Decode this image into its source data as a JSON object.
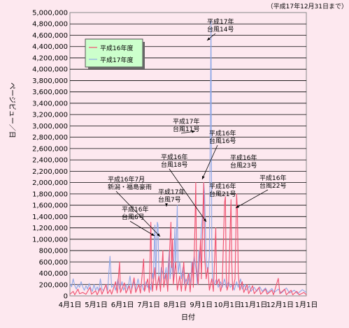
{
  "chart_data": {
    "type": "line",
    "note": "（平成17年12月31日まで）",
    "xlabel": "日付",
    "ylabel": "ページビュー／日",
    "ylim": [
      0,
      5000000
    ],
    "ytick_step": 200000,
    "grid": true,
    "legend_position": "top-left",
    "x_ticks": [
      "4月1日",
      "5月1日",
      "6月1日",
      "7月1日",
      "8月1日",
      "9月1日",
      "10月1日",
      "11月1日",
      "12月1日",
      "1月1日"
    ],
    "series": [
      {
        "name": "平成16年度",
        "color": "#f0506e",
        "points": [
          [
            0,
            30000
          ],
          [
            4,
            80000
          ],
          [
            6,
            20000
          ],
          [
            10,
            120000
          ],
          [
            12,
            40000
          ],
          [
            16,
            60000
          ],
          [
            20,
            30000
          ],
          [
            25,
            150000
          ],
          [
            27,
            30000
          ],
          [
            32,
            90000
          ],
          [
            34,
            20000
          ],
          [
            38,
            140000
          ],
          [
            40,
            30000
          ],
          [
            45,
            200000
          ],
          [
            47,
            40000
          ],
          [
            50,
            110000
          ],
          [
            52,
            30000
          ],
          [
            57,
            250000
          ],
          [
            59,
            50000
          ],
          [
            62,
            600000
          ],
          [
            63,
            60000
          ],
          [
            68,
            230000
          ],
          [
            70,
            50000
          ],
          [
            74,
            180000
          ],
          [
            76,
            40000
          ],
          [
            80,
            320000
          ],
          [
            82,
            60000
          ],
          [
            86,
            200000
          ],
          [
            88,
            50000
          ],
          [
            92,
            650000
          ],
          [
            93,
            80000
          ],
          [
            97,
            300000
          ],
          [
            99,
            60000
          ],
          [
            101,
            1300000
          ],
          [
            102,
            300000
          ],
          [
            103,
            80000
          ],
          [
            106,
            500000
          ],
          [
            108,
            100000
          ],
          [
            111,
            350000
          ],
          [
            113,
            80000
          ],
          [
            116,
            800000
          ],
          [
            117,
            150000
          ],
          [
            120,
            400000
          ],
          [
            122,
            80000
          ],
          [
            126,
            1300000
          ],
          [
            127,
            500000
          ],
          [
            128,
            1000000
          ],
          [
            129,
            200000
          ],
          [
            132,
            600000
          ],
          [
            134,
            100000
          ],
          [
            137,
            350000
          ],
          [
            139,
            80000
          ],
          [
            142,
            600000
          ],
          [
            144,
            90000
          ],
          [
            148,
            400000
          ],
          [
            150,
            70000
          ],
          [
            153,
            600000
          ],
          [
            154,
            150000
          ],
          [
            156,
            1200000
          ],
          [
            157,
            2000000
          ],
          [
            158,
            500000
          ],
          [
            160,
            200000
          ],
          [
            163,
            1000000
          ],
          [
            164,
            300000
          ],
          [
            166,
            1500000
          ],
          [
            167,
            2000000
          ],
          [
            168,
            700000
          ],
          [
            170,
            300000
          ],
          [
            172,
            500000
          ],
          [
            174,
            100000
          ],
          [
            177,
            300000
          ],
          [
            179,
            80000
          ],
          [
            182,
            1200000
          ],
          [
            183,
            200000
          ],
          [
            186,
            300000
          ],
          [
            188,
            80000
          ],
          [
            190,
            200000
          ],
          [
            193,
            1650000
          ],
          [
            194,
            1750000
          ],
          [
            195,
            400000
          ],
          [
            196,
            100000
          ],
          [
            198,
            200000
          ],
          [
            201,
            1700000
          ],
          [
            202,
            600000
          ],
          [
            203,
            100000
          ],
          [
            206,
            300000
          ],
          [
            208,
            1800000
          ],
          [
            209,
            1500000
          ],
          [
            210,
            400000
          ],
          [
            212,
            100000
          ],
          [
            215,
            250000
          ],
          [
            217,
            60000
          ],
          [
            221,
            200000
          ],
          [
            223,
            40000
          ],
          [
            228,
            180000
          ],
          [
            230,
            40000
          ],
          [
            236,
            150000
          ],
          [
            238,
            30000
          ],
          [
            244,
            120000
          ],
          [
            246,
            30000
          ],
          [
            252,
            100000
          ],
          [
            254,
            20000
          ],
          [
            260,
            310000
          ],
          [
            262,
            40000
          ],
          [
            268,
            120000
          ],
          [
            270,
            20000
          ],
          [
            276,
            100000
          ],
          [
            278,
            20000
          ],
          [
            283,
            80000
          ],
          [
            286,
            20000
          ],
          [
            292,
            60000
          ],
          [
            295,
            20000
          ]
        ]
      },
      {
        "name": "平成17年度",
        "color": "#8ea8e8",
        "points": [
          [
            0,
            220000
          ],
          [
            2,
            160000
          ],
          [
            4,
            300000
          ],
          [
            6,
            180000
          ],
          [
            8,
            120000
          ],
          [
            10,
            200000
          ],
          [
            12,
            150000
          ],
          [
            14,
            250000
          ],
          [
            16,
            160000
          ],
          [
            18,
            100000
          ],
          [
            20,
            180000
          ],
          [
            22,
            120000
          ],
          [
            24,
            220000
          ],
          [
            26,
            130000
          ],
          [
            28,
            80000
          ],
          [
            30,
            200000
          ],
          [
            32,
            100000
          ],
          [
            34,
            160000
          ],
          [
            36,
            80000
          ],
          [
            38,
            300000
          ],
          [
            40,
            120000
          ],
          [
            42,
            90000
          ],
          [
            45,
            200000
          ],
          [
            47,
            100000
          ],
          [
            50,
            700000
          ],
          [
            52,
            150000
          ],
          [
            55,
            200000
          ],
          [
            57,
            100000
          ],
          [
            60,
            300000
          ],
          [
            62,
            120000
          ],
          [
            65,
            250000
          ],
          [
            67,
            100000
          ],
          [
            70,
            200000
          ],
          [
            72,
            100000
          ],
          [
            75,
            350000
          ],
          [
            77,
            120000
          ],
          [
            80,
            250000
          ],
          [
            82,
            100000
          ],
          [
            85,
            300000
          ],
          [
            87,
            150000
          ],
          [
            90,
            200000
          ],
          [
            92,
            100000
          ],
          [
            95,
            250000
          ],
          [
            97,
            150000
          ],
          [
            99,
            200000
          ],
          [
            101,
            100000
          ],
          [
            103,
            400000
          ],
          [
            104,
            300000
          ],
          [
            106,
            1250000
          ],
          [
            107,
            300000
          ],
          [
            109,
            1300000
          ],
          [
            110,
            1250000
          ],
          [
            111,
            300000
          ],
          [
            112,
            200000
          ],
          [
            114,
            500000
          ],
          [
            116,
            400000
          ],
          [
            118,
            300000
          ],
          [
            120,
            500000
          ],
          [
            121,
            200000
          ],
          [
            124,
            800000
          ],
          [
            125,
            300000
          ],
          [
            127,
            600000
          ],
          [
            129,
            300000
          ],
          [
            131,
            1200000
          ],
          [
            132,
            500000
          ],
          [
            134,
            1600000
          ],
          [
            135,
            400000
          ],
          [
            137,
            600000
          ],
          [
            139,
            300000
          ],
          [
            141,
            500000
          ],
          [
            143,
            200000
          ],
          [
            145,
            300000
          ],
          [
            147,
            200000
          ],
          [
            149,
            400000
          ],
          [
            151,
            200000
          ],
          [
            152,
            600000
          ],
          [
            153,
            400000
          ],
          [
            155,
            700000
          ],
          [
            157,
            500000
          ],
          [
            159,
            200000
          ],
          [
            161,
            800000
          ],
          [
            162,
            600000
          ],
          [
            164,
            1200000
          ],
          [
            166,
            1500000
          ],
          [
            167,
            2000000
          ],
          [
            168,
            1800000
          ],
          [
            170,
            600000
          ],
          [
            172,
            400000
          ],
          [
            174,
            700000
          ],
          [
            176,
            4850000
          ],
          [
            177,
            900000
          ],
          [
            178,
            300000
          ],
          [
            180,
            200000
          ],
          [
            183,
            300000
          ],
          [
            185,
            150000
          ],
          [
            188,
            250000
          ],
          [
            190,
            150000
          ],
          [
            193,
            300000
          ],
          [
            195,
            150000
          ],
          [
            198,
            250000
          ],
          [
            200,
            150000
          ],
          [
            203,
            200000
          ],
          [
            205,
            100000
          ],
          [
            208,
            250000
          ],
          [
            210,
            150000
          ],
          [
            213,
            300000
          ],
          [
            215,
            120000
          ],
          [
            218,
            200000
          ],
          [
            220,
            100000
          ],
          [
            224,
            180000
          ],
          [
            226,
            80000
          ],
          [
            230,
            150000
          ],
          [
            233,
            80000
          ],
          [
            237,
            160000
          ],
          [
            240,
            80000
          ],
          [
            244,
            140000
          ],
          [
            247,
            60000
          ],
          [
            252,
            130000
          ],
          [
            255,
            60000
          ],
          [
            260,
            120000
          ],
          [
            264,
            50000
          ],
          [
            270,
            140000
          ],
          [
            274,
            50000
          ],
          [
            280,
            100000
          ],
          [
            284,
            40000
          ],
          [
            290,
            110000
          ],
          [
            295,
            60000
          ]
        ]
      }
    ],
    "annotations": [
      {
        "lines": [
          "平成17年",
          "台風14号"
        ],
        "x": 176,
        "y": 4850000
      },
      {
        "lines": [
          "平成17年",
          "台風11号"
        ],
        "x": 167,
        "y": 2000000
      },
      {
        "lines": [
          "平成16年",
          "台風16号"
        ],
        "x": 169,
        "y": 2000000
      },
      {
        "lines": [
          "平成16年",
          "台風18号"
        ],
        "x": 177,
        "y": 1300000
      },
      {
        "lines": [
          "平成16年",
          "台風23号"
        ],
        "x": 208,
        "y": 1800000
      },
      {
        "lines": [
          "平成16年",
          "台風22号"
        ],
        "x": 200,
        "y": 1550000
      },
      {
        "lines": [
          "平成16年",
          "台風21号"
        ],
        "x": 193,
        "y": 1750000
      },
      {
        "lines": [
          "平成17年",
          "台風7号"
        ],
        "x": 134,
        "y": 1600000
      },
      {
        "lines": [
          "平成16年7月",
          "新潟・福島豪雨"
        ],
        "x": 126,
        "y": 1300000
      },
      {
        "lines": [
          "平成16年",
          "台風6号"
        ],
        "x": 128,
        "y": 1000000
      }
    ]
  }
}
